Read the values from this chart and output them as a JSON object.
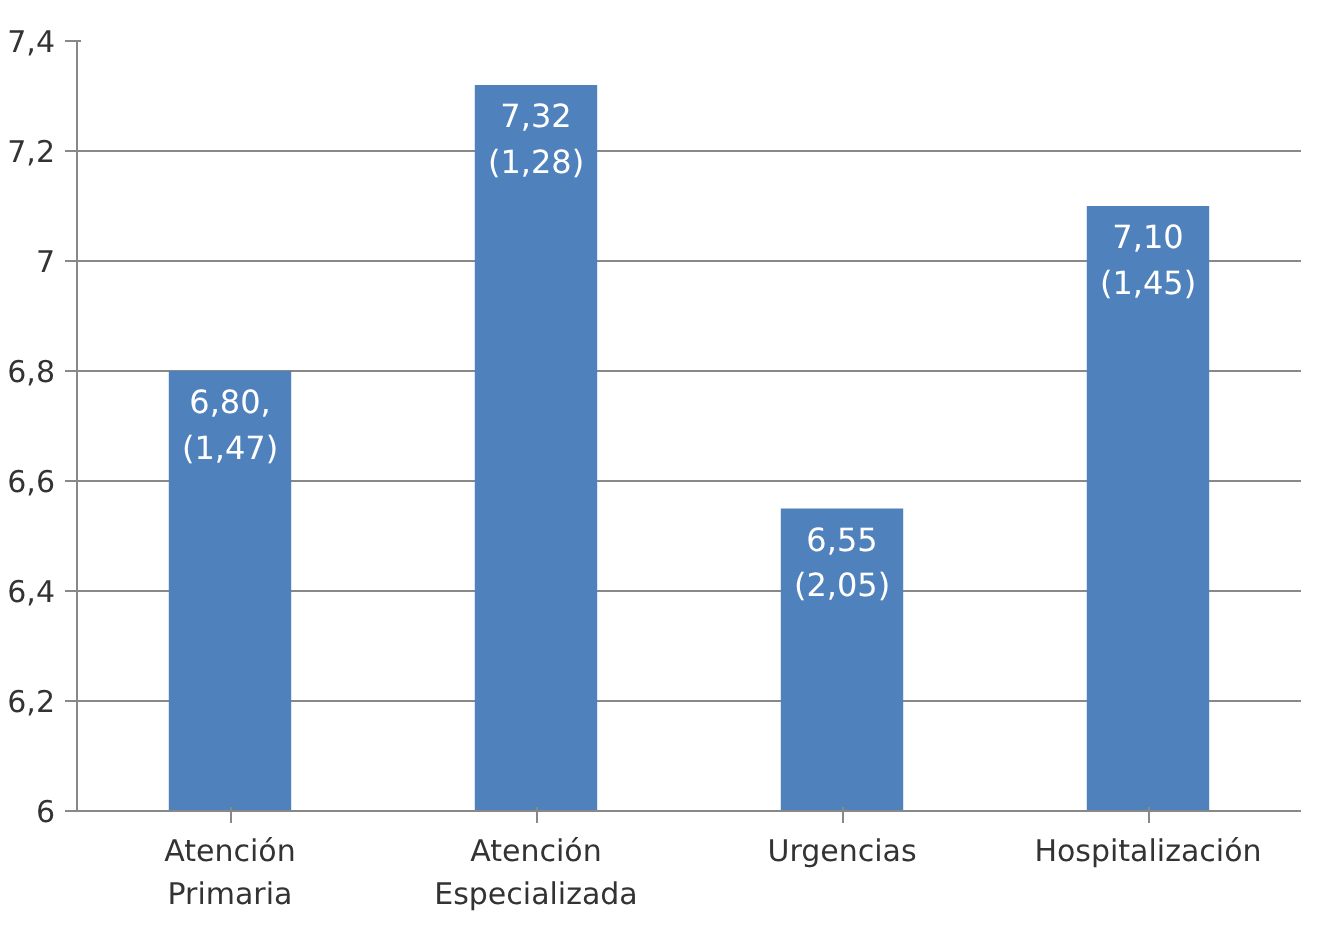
{
  "chart_data": {
    "type": "bar",
    "categories": [
      "Atención\nPrimaria",
      "Atención\nEspecializada",
      "Urgencias",
      "Hospitalización"
    ],
    "values": [
      6.8,
      7.32,
      6.55,
      7.1
    ],
    "value_labels": [
      "6,80,\n(1,47)",
      "7,32\n(1,28)",
      "6,55\n(2,05)",
      "7,10\n(1,45)"
    ],
    "color": "#4f81bd",
    "ylim": [
      6,
      7.4
    ],
    "yticks": [
      6,
      {
        "value": 6.2,
        "label": "6,2"
      },
      {
        "value": 6.4,
        "label": "6,4"
      },
      {
        "value": 6.6,
        "label": "6,6"
      },
      {
        "value": 6.8,
        "label": "6,8"
      },
      7,
      {
        "value": 7.2,
        "label": "7,2"
      },
      {
        "value": 7.4,
        "label": "7,4"
      }
    ],
    "grid": "y"
  }
}
